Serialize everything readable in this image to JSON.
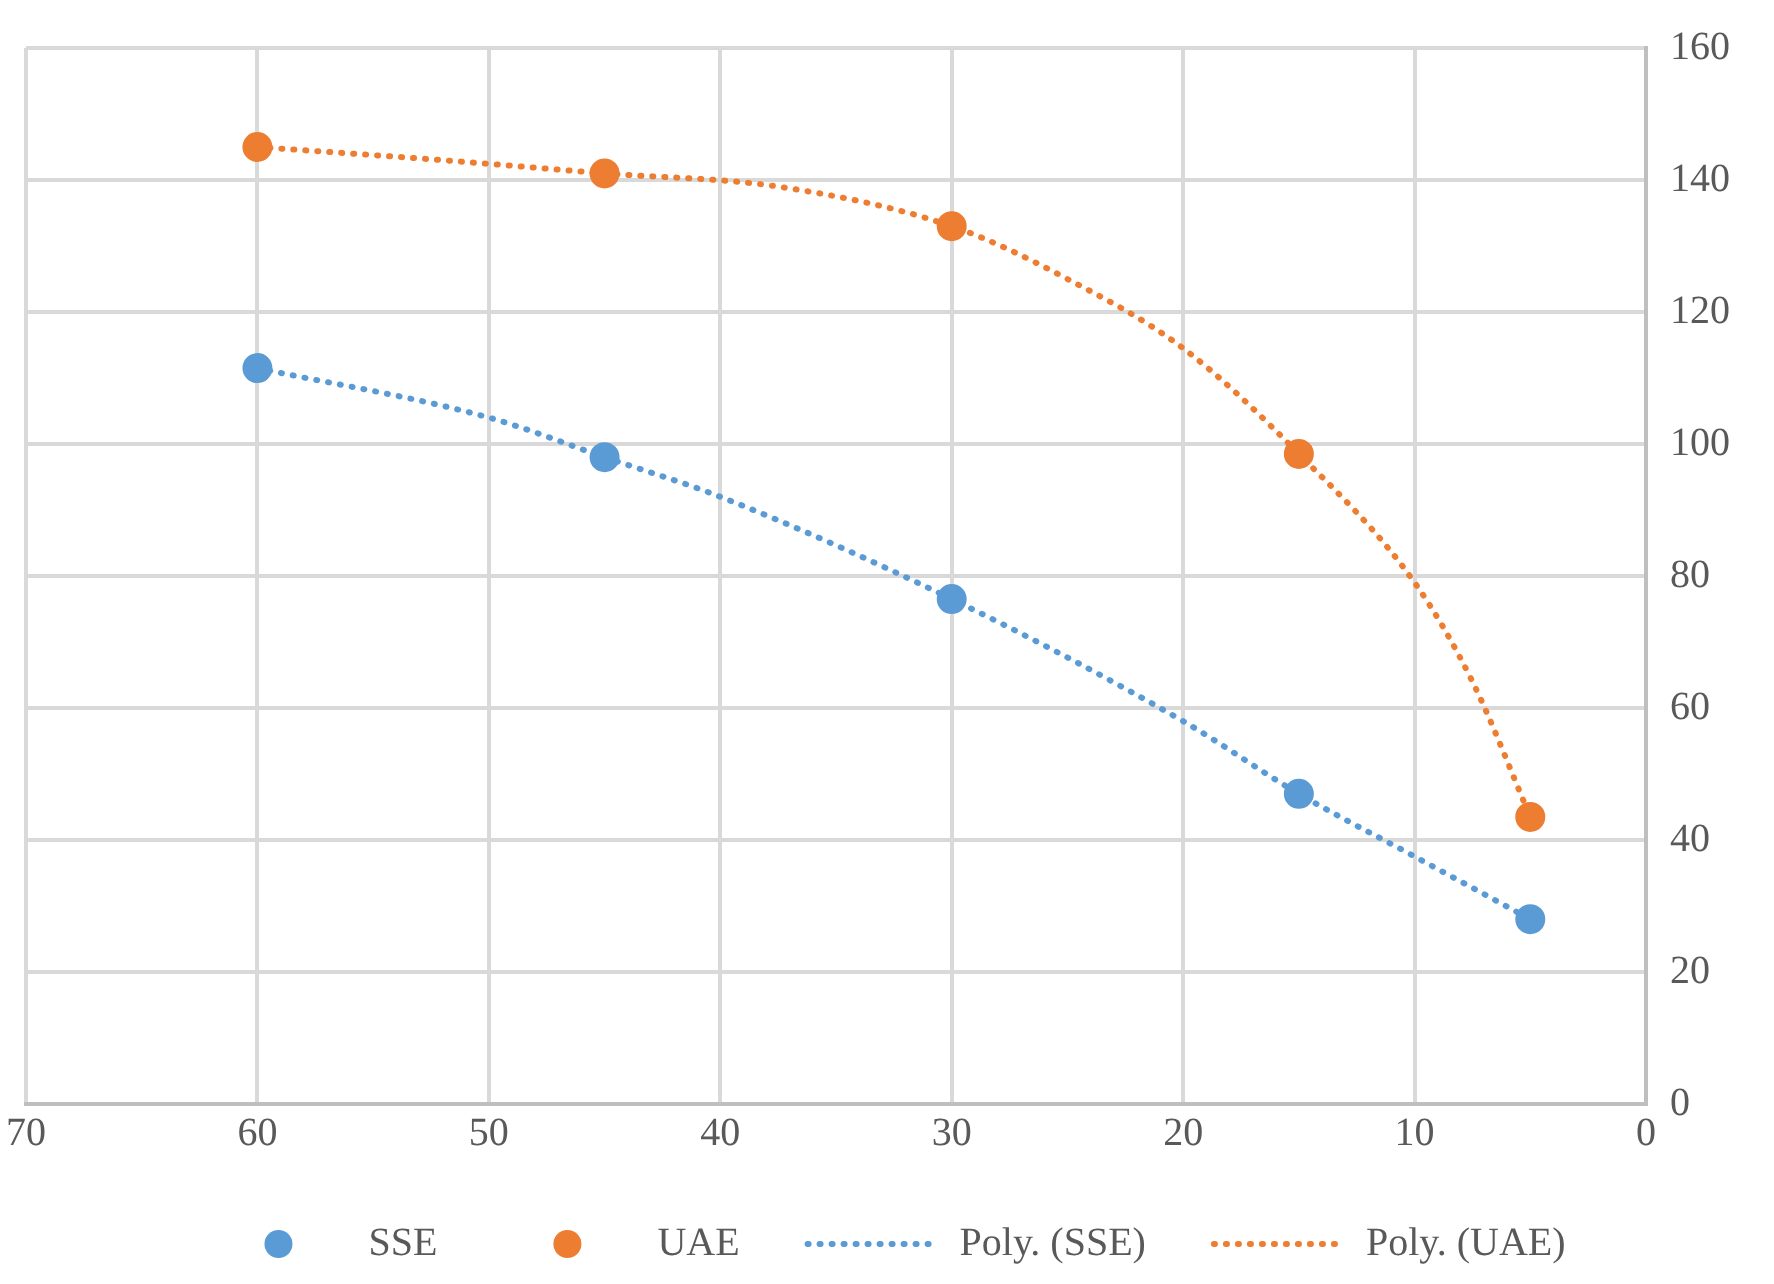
{
  "chart_data": {
    "type": "scatter",
    "xlim": [
      70,
      0
    ],
    "xticks": [
      70,
      60,
      50,
      40,
      30,
      20,
      10,
      0
    ],
    "ylim": [
      0,
      160
    ],
    "yticks": [
      0,
      20,
      40,
      60,
      80,
      100,
      120,
      140,
      160
    ],
    "grid": true,
    "legend": "bottom",
    "series": [
      {
        "name": "SSE",
        "type": "scatter",
        "marker": "circle",
        "color": "#5b9bd5",
        "x": [
          60,
          45,
          30,
          15,
          5
        ],
        "values": [
          111.5,
          98,
          76.5,
          47,
          28
        ]
      },
      {
        "name": "UAE",
        "type": "scatter",
        "marker": "circle",
        "color": "#ed7d31",
        "x": [
          60,
          45,
          30,
          15,
          5
        ],
        "values": [
          145,
          141,
          133,
          98.5,
          43.5
        ]
      },
      {
        "name": "Poly. (SSE)",
        "type": "line",
        "marker": "none",
        "line_style": "dotted",
        "color": "#5b9bd5",
        "x": [
          60,
          50,
          45,
          40,
          30,
          20,
          15,
          10,
          5
        ],
        "values": [
          111.5,
          104,
          98,
          92,
          76.5,
          58,
          47,
          37.5,
          28
        ]
      },
      {
        "name": "Poly. (UAE)",
        "type": "line",
        "marker": "none",
        "line_style": "dotted",
        "color": "#ed7d31",
        "x": [
          60,
          52,
          45,
          37.5,
          30,
          25,
          20,
          15,
          10,
          7.5,
          5
        ],
        "values": [
          145,
          143,
          141,
          139,
          133,
          125,
          114.5,
          98.5,
          79,
          64,
          43.5
        ]
      }
    ]
  }
}
